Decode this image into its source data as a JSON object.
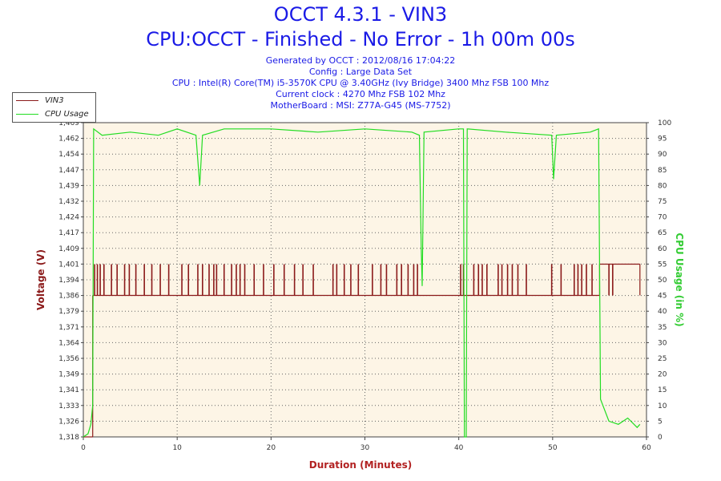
{
  "header": {
    "title": "OCCT 4.3.1 - VIN3",
    "subtitle": "CPU:OCCT - Finished - No Error - 1h 00m 00s",
    "generated": "Generated by OCCT : 2012/08/16 17:04:22",
    "config": "Config : Large Data Set",
    "cpu": "CPU : Intel(R) Core(TM) i5-3570K CPU @ 3.40GHz (Ivy Bridge) 3400 Mhz FSB 100 Mhz",
    "clock": "Current clock : 4270 Mhz FSB 102 Mhz",
    "motherboard": "MotherBoard : MSI: Z77A-G45 (MS-7752)"
  },
  "chart_data": {
    "type": "line",
    "xlabel": "Duration (Minutes)",
    "ylabel_left": "Voltage (V)",
    "ylabel_right": "CPU Usage (in %)",
    "xlim": [
      0,
      60
    ],
    "ylim_left": [
      1.318,
      1.469
    ],
    "ylim_right": [
      0,
      100
    ],
    "x_ticks": [
      "0",
      "10",
      "20",
      "30",
      "40",
      "50",
      "60"
    ],
    "y_left_ticks": [
      "1,318",
      "1,326",
      "1,333",
      "1,341",
      "1,349",
      "1,356",
      "1,364",
      "1,371",
      "1,379",
      "1,386",
      "1,394",
      "1,401",
      "1,409",
      "1,417",
      "1,424",
      "1,432",
      "1,439",
      "1,447",
      "1,454",
      "1,462",
      "1,469"
    ],
    "y_right_ticks": [
      "0",
      "5",
      "10",
      "15",
      "20",
      "25",
      "30",
      "35",
      "40",
      "45",
      "50",
      "55",
      "60",
      "65",
      "70",
      "75",
      "80",
      "85",
      "90",
      "95",
      "100"
    ],
    "grid": true,
    "legend_position": "top-left",
    "colors": {
      "vin3": "#8b1a1a",
      "cpu": "#22dd22",
      "plot_bg": "#fdf5e6"
    },
    "series": [
      {
        "name": "VIN3",
        "baseline": 1.386,
        "high": 1.401,
        "segments": [
          {
            "x_start": 0.0,
            "x_end": 1.0,
            "value": 1.318
          },
          {
            "x_start": 1.0,
            "x_end": 55.0,
            "value": 1.386
          },
          {
            "x_start": 55.0,
            "x_end": 59.3,
            "value": 1.401
          }
        ],
        "spikes_to_high": [
          1.2,
          1.5,
          1.8,
          2.2,
          3.0,
          3.6,
          4.4,
          4.9,
          5.6,
          6.5,
          7.3,
          8.2,
          9.1,
          10.5,
          11.2,
          12.2,
          12.7,
          13.4,
          13.9,
          14.2,
          15.0,
          15.8,
          16.3,
          16.7,
          17.2,
          18.2,
          19.2,
          20.3,
          21.4,
          22.5,
          23.4,
          24.5,
          26.6,
          27.0,
          27.8,
          28.5,
          29.3,
          30.8,
          31.7,
          32.3,
          33.4,
          33.9,
          34.6,
          35.2,
          35.6,
          40.2,
          40.5,
          41.6,
          42.1,
          42.5,
          43.0,
          44.2,
          44.6,
          45.2,
          45.7,
          46.3,
          47.2,
          49.9,
          50.9,
          52.3,
          52.7,
          53.1,
          53.6,
          54.2,
          56.0,
          56.4
        ]
      },
      {
        "name": "CPU Usage",
        "points": [
          [
            0,
            0
          ],
          [
            0.5,
            1
          ],
          [
            0.8,
            4
          ],
          [
            1.0,
            10
          ],
          [
            1.1,
            98
          ],
          [
            2,
            96
          ],
          [
            5,
            97
          ],
          [
            8,
            96
          ],
          [
            10,
            98
          ],
          [
            12,
            96
          ],
          [
            12.4,
            80
          ],
          [
            12.7,
            96
          ],
          [
            15,
            98
          ],
          [
            20,
            98
          ],
          [
            25,
            97
          ],
          [
            30,
            98
          ],
          [
            35,
            97
          ],
          [
            35.8,
            96
          ],
          [
            36.0,
            60
          ],
          [
            36.1,
            48
          ],
          [
            36.3,
            97
          ],
          [
            40,
            98
          ],
          [
            40.5,
            98
          ],
          [
            40.6,
            0
          ],
          [
            40.8,
            0
          ],
          [
            40.9,
            98
          ],
          [
            45,
            97
          ],
          [
            49.9,
            96
          ],
          [
            50.1,
            82
          ],
          [
            50.4,
            96
          ],
          [
            54,
            97
          ],
          [
            54.9,
            98
          ],
          [
            55.1,
            12
          ],
          [
            56,
            5
          ],
          [
            57,
            4
          ],
          [
            58,
            6
          ],
          [
            59,
            3
          ],
          [
            59.3,
            4
          ]
        ]
      }
    ]
  }
}
